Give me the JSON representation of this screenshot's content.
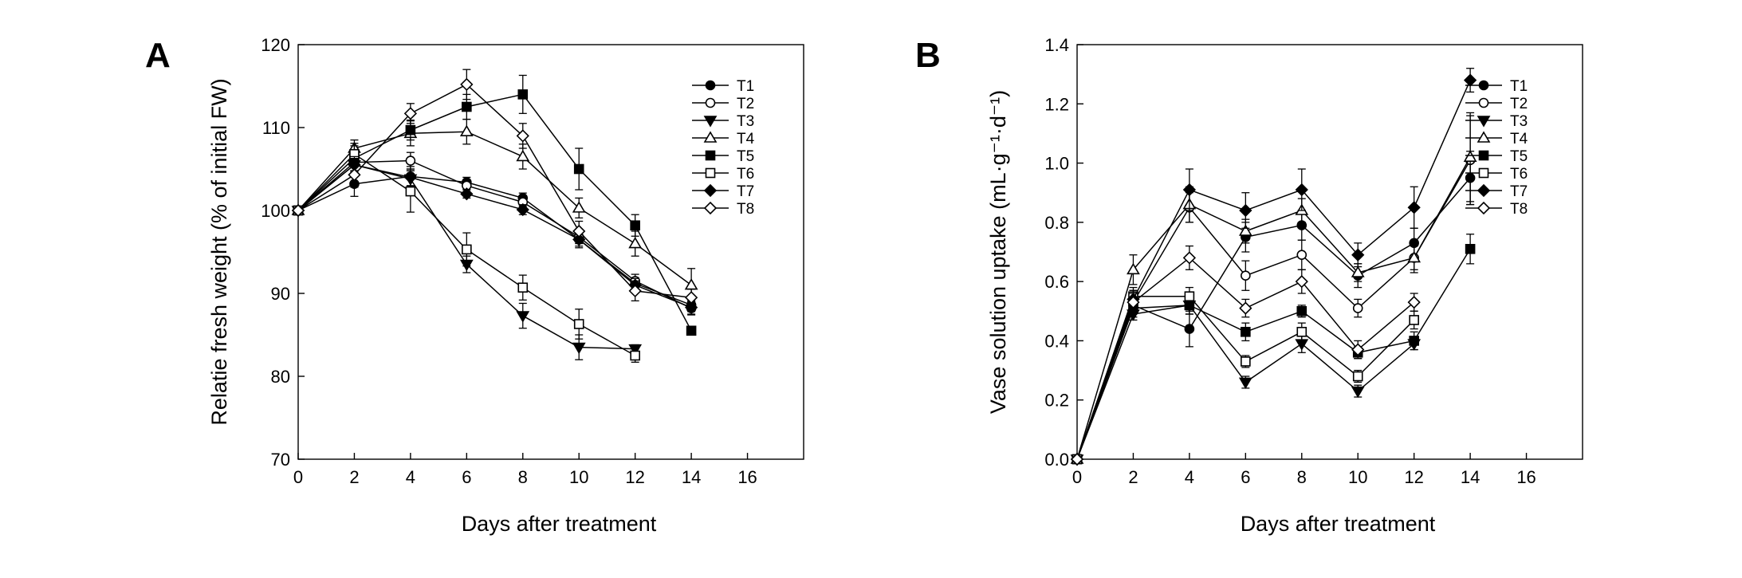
{
  "figure": {
    "panel_a_letter": "A",
    "panel_b_letter": "B"
  },
  "chart_data": [
    {
      "panel": "A",
      "type": "line",
      "title": "",
      "xlabel": "Days after treatment",
      "ylabel": "Relatie fresh weight (% of initial FW)",
      "xlim": [
        0,
        18
      ],
      "ylim": [
        70,
        120
      ],
      "xticks": [
        "0",
        "2",
        "4",
        "6",
        "8",
        "10",
        "12",
        "14",
        "16"
      ],
      "yticks": [
        "70",
        "80",
        "90",
        "100",
        "110",
        "120"
      ],
      "legend_position": "top-right",
      "x": [
        0,
        2,
        4,
        6,
        8,
        10,
        12,
        14
      ],
      "series": [
        {
          "name": "T1",
          "marker": "circle",
          "filled": true,
          "values": [
            100,
            103.2,
            104.1,
            103.4,
            101.5,
            96.5,
            91.2,
            88.6
          ],
          "errors": [
            0,
            1.5,
            1.2,
            0.6,
            0.6,
            1.0,
            0.7,
            0.8
          ]
        },
        {
          "name": "T2",
          "marker": "circle",
          "filled": false,
          "values": [
            100,
            105.8,
            106.0,
            103.0,
            101.0,
            96.8,
            91.5,
            88.2
          ],
          "errors": [
            0,
            1.0,
            1.0,
            0.5,
            0.5,
            0.8,
            0.8,
            0.8
          ]
        },
        {
          "name": "T3",
          "marker": "triangle-down",
          "filled": true,
          "values": [
            100,
            105.5,
            103.8,
            93.5,
            87.3,
            83.5,
            83.3,
            null
          ],
          "errors": [
            0,
            0.8,
            1.0,
            1.0,
            1.5,
            1.5,
            0.5,
            0
          ]
        },
        {
          "name": "T4",
          "marker": "triangle-up",
          "filled": false,
          "values": [
            100,
            107.5,
            109.3,
            109.5,
            106.5,
            100.3,
            96.0,
            91.0
          ],
          "errors": [
            0,
            1.0,
            1.5,
            1.5,
            1.5,
            1.2,
            1.5,
            2.0
          ]
        },
        {
          "name": "T5",
          "marker": "square",
          "filled": true,
          "values": [
            100,
            106.3,
            109.7,
            112.5,
            114.0,
            105.0,
            98.2,
            85.5
          ],
          "errors": [
            0,
            1.5,
            1.2,
            1.5,
            2.3,
            2.5,
            1.3,
            0.5
          ]
        },
        {
          "name": "T6",
          "marker": "square",
          "filled": false,
          "values": [
            100,
            106.8,
            102.3,
            95.3,
            90.7,
            86.3,
            82.5,
            null
          ],
          "errors": [
            0,
            1.3,
            2.5,
            2.0,
            1.5,
            1.8,
            0.8,
            0
          ]
        },
        {
          "name": "T7",
          "marker": "diamond",
          "filled": true,
          "values": [
            100,
            105.5,
            104.0,
            102.0,
            100.1,
            96.5,
            91.0,
            88.3
          ],
          "errors": [
            0,
            1.0,
            1.0,
            0.5,
            0.6,
            0.8,
            0.8,
            0.8
          ]
        },
        {
          "name": "T8",
          "marker": "diamond",
          "filled": false,
          "values": [
            100,
            104.3,
            111.7,
            115.2,
            109.0,
            97.5,
            90.3,
            89.5
          ],
          "errors": [
            0,
            1.5,
            1.2,
            1.8,
            1.5,
            1.2,
            1.2,
            1.0
          ]
        }
      ]
    },
    {
      "panel": "B",
      "type": "line",
      "title": "",
      "xlabel": "Days after treatment",
      "ylabel": "Vase solution uptake (mL·g⁻¹·d⁻¹)",
      "xlim": [
        0,
        18
      ],
      "ylim": [
        0,
        1.4
      ],
      "xticks": [
        "0",
        "2",
        "4",
        "6",
        "8",
        "10",
        "12",
        "14",
        "16"
      ],
      "yticks": [
        "0.0",
        "0.2",
        "0.4",
        "0.6",
        "0.8",
        "1.0",
        "1.2",
        "1.4"
      ],
      "legend_position": "top-right",
      "x": [
        0,
        2,
        4,
        6,
        8,
        10,
        12,
        14
      ],
      "series": [
        {
          "name": "T1",
          "marker": "circle",
          "filled": true,
          "values": [
            0,
            0.52,
            0.44,
            0.75,
            0.79,
            0.62,
            0.73,
            0.95
          ],
          "errors": [
            0,
            0.03,
            0.06,
            0.05,
            0.05,
            0.04,
            0.05,
            0.09
          ]
        },
        {
          "name": "T2",
          "marker": "circle",
          "filled": false,
          "values": [
            0,
            0.53,
            0.85,
            0.62,
            0.69,
            0.51,
            0.68,
            1.01
          ],
          "errors": [
            0,
            0.04,
            0.05,
            0.05,
            0.05,
            0.03,
            0.05,
            0.15
          ]
        },
        {
          "name": "T3",
          "marker": "triangle-down",
          "filled": true,
          "values": [
            0,
            0.49,
            0.52,
            0.26,
            0.39,
            0.23,
            0.39,
            null
          ],
          "errors": [
            0,
            0.02,
            0.03,
            0.02,
            0.03,
            0.02,
            0.02,
            0
          ]
        },
        {
          "name": "T4",
          "marker": "triangle-up",
          "filled": false,
          "values": [
            0,
            0.64,
            0.86,
            0.77,
            0.84,
            0.63,
            0.68,
            1.02
          ],
          "errors": [
            0,
            0.05,
            0.06,
            0.04,
            0.04,
            0.03,
            0.04,
            0.15
          ]
        },
        {
          "name": "T5",
          "marker": "square",
          "filled": true,
          "values": [
            0,
            0.51,
            0.52,
            0.43,
            0.5,
            0.36,
            0.4,
            0.71
          ],
          "errors": [
            0,
            0.03,
            0.03,
            0.03,
            0.02,
            0.02,
            0.03,
            0.05
          ]
        },
        {
          "name": "T6",
          "marker": "square",
          "filled": false,
          "values": [
            0,
            0.55,
            0.55,
            0.33,
            0.43,
            0.28,
            0.47,
            null
          ],
          "errors": [
            0,
            0.03,
            0.03,
            0.02,
            0.03,
            0.02,
            0.03,
            0
          ]
        },
        {
          "name": "T7",
          "marker": "diamond",
          "filled": true,
          "values": [
            0,
            0.54,
            0.91,
            0.84,
            0.91,
            0.69,
            0.85,
            1.28
          ],
          "errors": [
            0,
            0.03,
            0.07,
            0.06,
            0.07,
            0.04,
            0.07,
            0.04
          ]
        },
        {
          "name": "T8",
          "marker": "diamond",
          "filled": false,
          "values": [
            0,
            0.53,
            0.68,
            0.51,
            0.6,
            0.37,
            0.53,
            null
          ],
          "errors": [
            0,
            0.03,
            0.04,
            0.03,
            0.04,
            0.03,
            0.03,
            0
          ]
        }
      ]
    }
  ]
}
